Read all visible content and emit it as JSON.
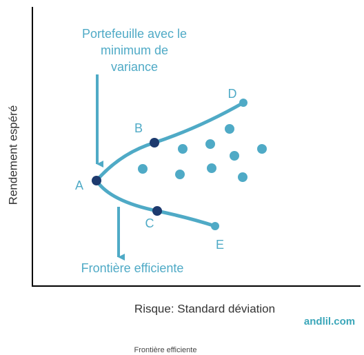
{
  "annotation_top": [
    "Portefeuille avec le",
    "minimum de",
    "variance"
  ],
  "annotation_bottom": "Frontière efficiente",
  "points": [
    {
      "label": "A"
    },
    {
      "label": "B"
    },
    {
      "label": "C"
    },
    {
      "label": "D"
    },
    {
      "label": "E"
    }
  ],
  "y_axis_label": "Rendement espéré",
  "x_axis_label": "Risque: Standard déviation",
  "watermark": "andlil.com",
  "caption": "Frontière efficiente"
}
